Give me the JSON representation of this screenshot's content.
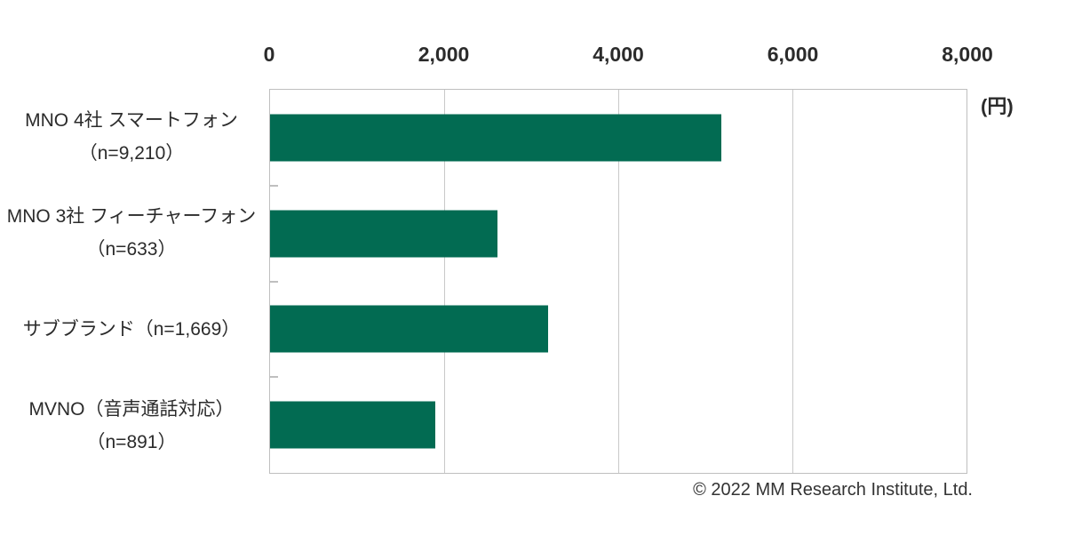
{
  "chart_data": {
    "type": "bar",
    "orientation": "horizontal",
    "title": "",
    "categories": [
      {
        "line1": "MNO 4社 スマートフォン",
        "line2": "（n=9,210）"
      },
      {
        "line1": "MNO 3社 フィーチャーフォン",
        "line2": "（n=633）"
      },
      {
        "line1": "サブブランド（n=1,669）",
        "line2": ""
      },
      {
        "line1": "MVNO（音声通話対応）",
        "line2": "（n=891）"
      }
    ],
    "values": [
      5180,
      2615,
      3195,
      1900
    ],
    "value_unit": "円",
    "unit_label": "(円)",
    "x_ticks": [
      "0",
      "2,000",
      "4,000",
      "6,000",
      "8,000"
    ],
    "xlim": [
      0,
      8000
    ],
    "axis_position": "top",
    "grid": "vertical gridlines at 2000/4000/6000",
    "legend": "none",
    "bar_color": "#026b52"
  },
  "colors": {
    "bar": "#026b52",
    "plot_border": "#bfbfbf",
    "gridline": "#c9c9c9",
    "text": "#2b2b2b"
  },
  "footer": {
    "copyright": "© 2022 MM Research Institute, Ltd."
  }
}
